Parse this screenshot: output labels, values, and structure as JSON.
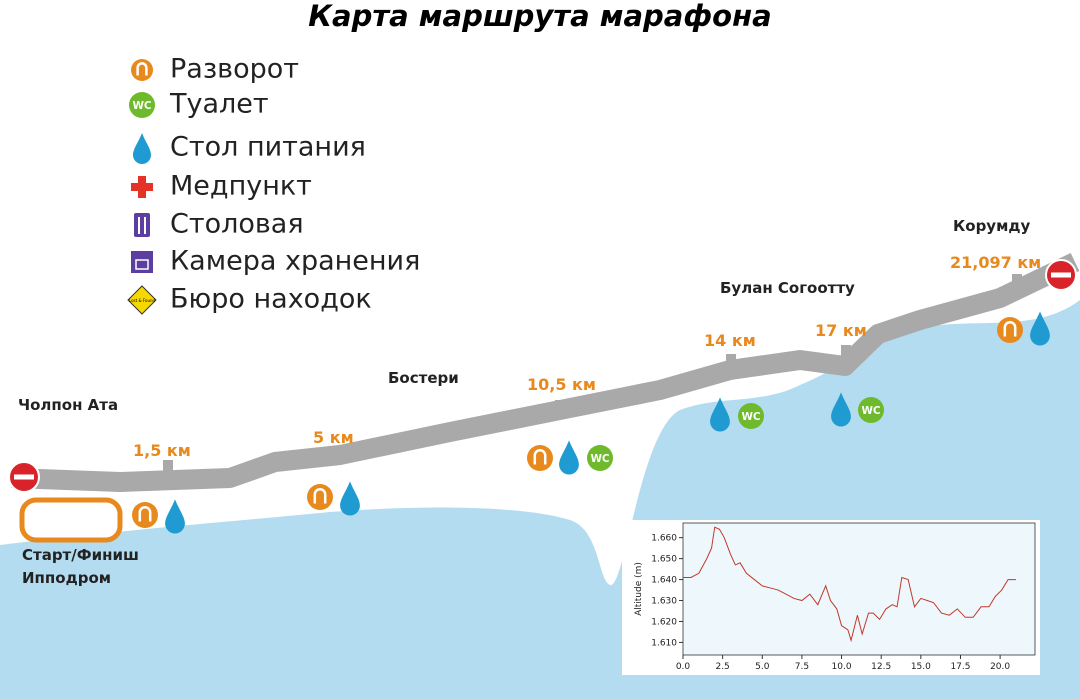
{
  "title": "Карта маршрута марафона",
  "legend": [
    "Разворот",
    "Туалет",
    "Стол питания",
    "Медпункт",
    "Столовая",
    "Камера хранения",
    "Бюро находок"
  ],
  "icons": {
    "wc": "WC",
    "lost_found": "Lost & Found"
  },
  "places": [
    "Чолпон Ата",
    "Бостери",
    "Булан Согоотту",
    "Корумду"
  ],
  "start": [
    "Старт/Финиш",
    "Ипподром"
  ],
  "distances": [
    "1,5 км",
    "5 км",
    "10,5 км",
    "14 км",
    "17 км",
    "21,097 км"
  ],
  "chart_data": {
    "type": "line",
    "y_label": "Altitude (m)",
    "x": [
      0,
      0.5,
      1,
      1.5,
      1.8,
      2,
      2.3,
      2.6,
      3,
      3.3,
      3.6,
      4,
      4.5,
      5,
      5.5,
      6,
      6.5,
      7,
      7.5,
      8,
      8.5,
      9,
      9.3,
      9.7,
      10,
      10.4,
      10.6,
      11,
      11.3,
      11.7,
      12,
      12.4,
      12.8,
      13.2,
      13.5,
      13.8,
      14.2,
      14.6,
      15,
      15.4,
      15.8,
      16.3,
      16.8,
      17.3,
      17.8,
      18.3,
      18.8,
      19.3,
      19.7,
      20.1,
      20.5,
      21
    ],
    "series": [
      {
        "color": "#c0392b",
        "values": [
          1.641,
          1.641,
          1.643,
          1.65,
          1.655,
          1.665,
          1.664,
          1.66,
          1.652,
          1.647,
          1.648,
          1.643,
          1.64,
          1.637,
          1.636,
          1.635,
          1.633,
          1.631,
          1.63,
          1.633,
          1.628,
          1.637,
          1.63,
          1.626,
          1.618,
          1.616,
          1.611,
          1.623,
          1.614,
          1.624,
          1.624,
          1.621,
          1.626,
          1.628,
          1.627,
          1.641,
          1.64,
          1.627,
          1.631,
          1.63,
          1.629,
          1.624,
          1.623,
          1.626,
          1.622,
          1.622,
          1.627,
          1.627,
          1.632,
          1.635,
          1.64,
          1.64
        ]
      }
    ],
    "xlim": [
      0,
      22.2
    ],
    "ylim": [
      1.604,
      1.667
    ],
    "xticks": [
      {
        "value": 0,
        "label": "0.0"
      },
      {
        "value": 2.5,
        "label": "2.5"
      },
      {
        "value": 5,
        "label": "5.0"
      },
      {
        "value": 7.5,
        "label": "7.5"
      },
      {
        "value": 10,
        "label": "10.0"
      },
      {
        "value": 12.5,
        "label": "12.5"
      },
      {
        "value": 15,
        "label": "15.0"
      },
      {
        "value": 17.5,
        "label": "17.5"
      },
      {
        "value": 20,
        "label": "20.0"
      }
    ],
    "yticks": [
      {
        "value": 1.61,
        "label": "1.610"
      },
      {
        "value": 1.62,
        "label": "1.620"
      },
      {
        "value": 1.63,
        "label": "1.630"
      },
      {
        "value": 1.64,
        "label": "1.640"
      },
      {
        "value": 1.65,
        "label": "1.650"
      },
      {
        "value": 1.66,
        "label": "1.660"
      }
    ],
    "grid": false
  }
}
